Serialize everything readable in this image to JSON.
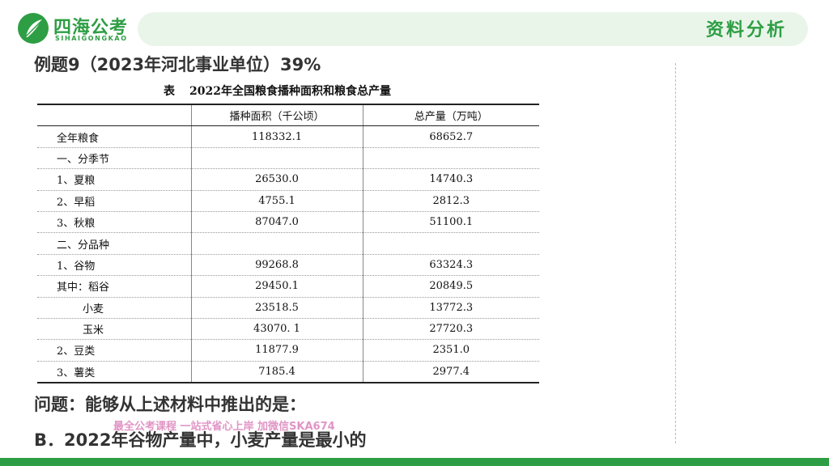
{
  "header": {
    "logo_name": "四海公考",
    "logo_sub": "SIHAIGONGKAO",
    "section_tag": "资料分析",
    "accent_color": "#2e9e44",
    "bar_color": "#eaf5ea"
  },
  "example_title": "例题9（2023年河北事业单位）39%",
  "table": {
    "caption_prefix": "表",
    "caption": "2022年全国粮食播种面积和粮食总产量",
    "headers": [
      "",
      "播种面积（千公顷）",
      "总产量（万吨）"
    ],
    "rows": [
      {
        "label": "全年粮食",
        "area": "118332.1",
        "output": "68652.7"
      },
      {
        "label": "一、分季节",
        "area": "",
        "output": ""
      },
      {
        "label": "1、夏粮",
        "area": "26530.0",
        "output": "14740.3"
      },
      {
        "label": "2、早稻",
        "area": "4755.1",
        "output": "2812.3"
      },
      {
        "label": "3、秋粮",
        "area": "87047.0",
        "output": "51100.1"
      },
      {
        "label": "二、分品种",
        "area": "",
        "output": ""
      },
      {
        "label": "1、谷物",
        "area": "99268.8",
        "output": "63324.3"
      },
      {
        "label": "其中：稻谷",
        "area": "29450.1",
        "output": "20849.5"
      },
      {
        "label": "小麦",
        "area": "23518.5",
        "output": "13772.3"
      },
      {
        "label": "玉米",
        "area": "43070. 1",
        "output": "27720.3"
      },
      {
        "label": "2、豆类",
        "area": "11877.9",
        "output": "2351.0"
      },
      {
        "label": "3、薯类",
        "area": "7185.4",
        "output": "2977.4"
      }
    ]
  },
  "question": "问题：能够从上述材料中推出的是：",
  "option_b": "B．2022年谷物产量中，小麦产量是最小的",
  "watermark": "最全公考课程 一站式省心上岸 加微信SKA674"
}
